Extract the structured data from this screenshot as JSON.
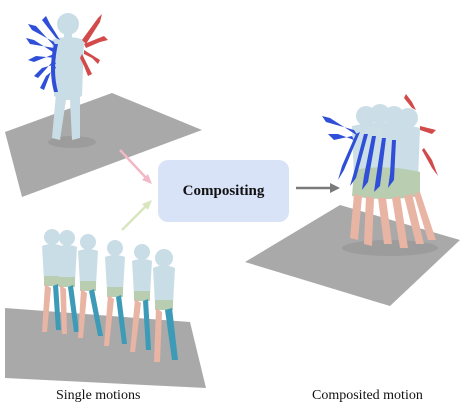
{
  "diagram": {
    "center_label": "Compositing",
    "captions": {
      "left": "Single motions",
      "right": "Composited motion"
    },
    "colors": {
      "center_box": "#d9e3f7",
      "arrow_pink": "#f2b8c6",
      "arrow_green": "#d8e6bf",
      "arrow_gray": "#7a7a7a",
      "floor": "#a9a9a9",
      "body_light_blue": "#c9dde6",
      "arm_blue": "#2f4fd8",
      "arm_red": "#d24a4a",
      "leg_teal": "#3d9bb8",
      "leg_pink": "#e8b4a4",
      "shorts_green": "#b9cdb1"
    },
    "icons": [
      "single-motion-arms-figure",
      "single-motion-walking-sequence",
      "composited-motion-figure",
      "arrow-pink-icon",
      "arrow-green-icon",
      "arrow-right-icon"
    ]
  }
}
